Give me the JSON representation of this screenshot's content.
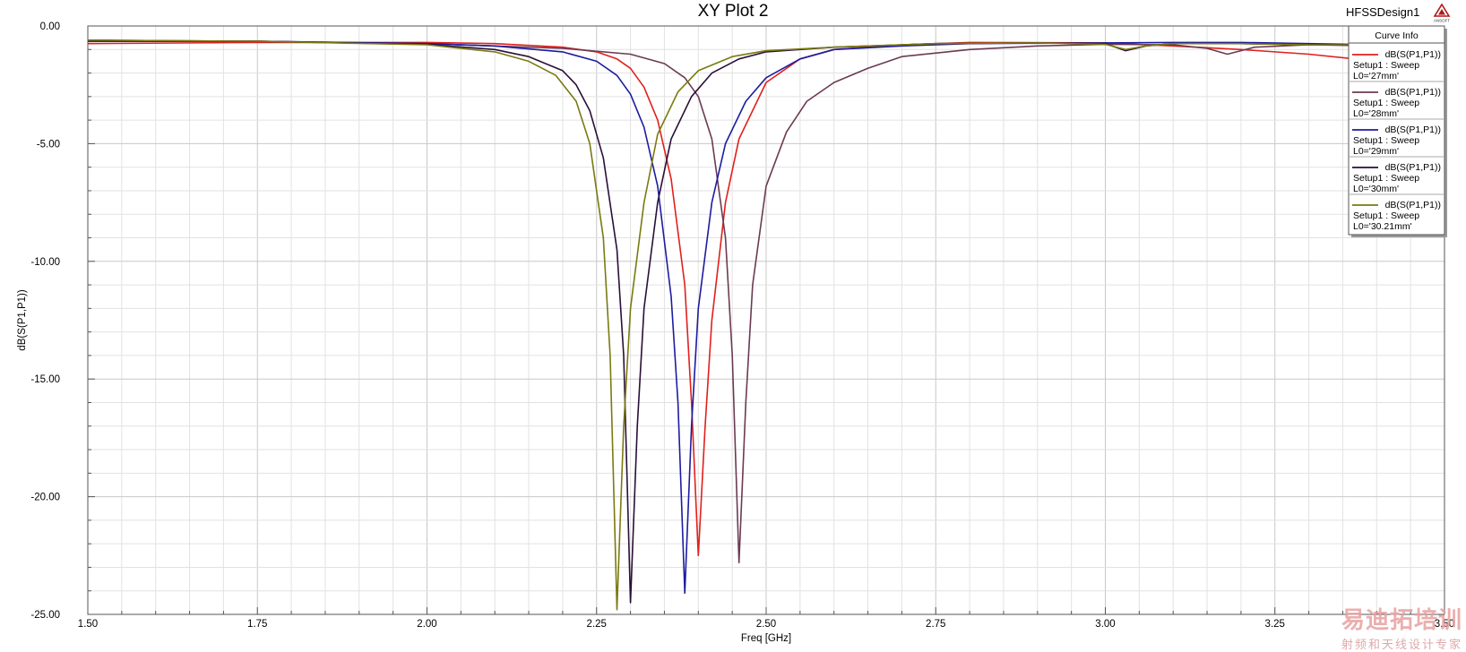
{
  "title": "XY Plot 2",
  "design_name": "HFSSDesign1",
  "logo_text": "ANSOFT",
  "watermark": {
    "line1": "易迪拓培训",
    "line2": "射频和天线设计专家"
  },
  "legend": {
    "header": "Curve Info"
  },
  "chart_data": {
    "type": "line",
    "title": "XY Plot 2",
    "xlabel": "Freq [GHz]",
    "ylabel": "dB(S(P1,P1))",
    "xlim": [
      1.5,
      3.5
    ],
    "ylim": [
      -25,
      0
    ],
    "x_ticks": [
      "1.50",
      "1.75",
      "2.00",
      "2.25",
      "2.50",
      "2.75",
      "3.00",
      "3.25",
      "3.50"
    ],
    "y_ticks": [
      "0.00",
      "-5.00",
      "-10.00",
      "-15.00",
      "-20.00",
      "-25.00"
    ],
    "grid": true,
    "legend_position": "top-right",
    "series": [
      {
        "name": "dB(S(P1,P1))",
        "setup": "Setup1 : Sweep",
        "param": "L0='27mm'",
        "color": "#e0201c",
        "points": [
          [
            1.5,
            -0.75
          ],
          [
            1.75,
            -0.7
          ],
          [
            2.0,
            -0.7
          ],
          [
            2.1,
            -0.75
          ],
          [
            2.2,
            -0.9
          ],
          [
            2.25,
            -1.1
          ],
          [
            2.28,
            -1.4
          ],
          [
            2.3,
            -1.8
          ],
          [
            2.32,
            -2.6
          ],
          [
            2.34,
            -4.0
          ],
          [
            2.36,
            -6.5
          ],
          [
            2.38,
            -11.0
          ],
          [
            2.39,
            -16.0
          ],
          [
            2.4,
            -22.5
          ],
          [
            2.41,
            -17.0
          ],
          [
            2.42,
            -12.5
          ],
          [
            2.44,
            -7.5
          ],
          [
            2.46,
            -4.8
          ],
          [
            2.5,
            -2.4
          ],
          [
            2.55,
            -1.4
          ],
          [
            2.6,
            -1.0
          ],
          [
            2.7,
            -0.8
          ],
          [
            2.8,
            -0.7
          ],
          [
            3.0,
            -0.72
          ],
          [
            3.1,
            -0.85
          ],
          [
            3.2,
            -1.0
          ],
          [
            3.3,
            -1.2
          ],
          [
            3.4,
            -1.5
          ],
          [
            3.45,
            -1.7
          ]
        ]
      },
      {
        "name": "dB(S(P1,P1))",
        "setup": "Setup1 : Sweep",
        "param": "L0='28mm'",
        "color": "#6b3a52",
        "points": [
          [
            1.5,
            -0.65
          ],
          [
            1.75,
            -0.65
          ],
          [
            2.0,
            -0.75
          ],
          [
            2.2,
            -0.95
          ],
          [
            2.3,
            -1.2
          ],
          [
            2.35,
            -1.6
          ],
          [
            2.38,
            -2.2
          ],
          [
            2.4,
            -3.0
          ],
          [
            2.42,
            -4.8
          ],
          [
            2.44,
            -9.0
          ],
          [
            2.45,
            -14.0
          ],
          [
            2.46,
            -22.8
          ],
          [
            2.47,
            -16.0
          ],
          [
            2.48,
            -11.0
          ],
          [
            2.5,
            -6.8
          ],
          [
            2.53,
            -4.5
          ],
          [
            2.56,
            -3.2
          ],
          [
            2.6,
            -2.4
          ],
          [
            2.65,
            -1.8
          ],
          [
            2.7,
            -1.3
          ],
          [
            2.8,
            -1.0
          ],
          [
            2.9,
            -0.85
          ],
          [
            3.0,
            -0.78
          ],
          [
            3.1,
            -0.8
          ],
          [
            3.15,
            -0.95
          ],
          [
            3.18,
            -1.2
          ],
          [
            3.22,
            -0.9
          ],
          [
            3.3,
            -0.8
          ],
          [
            3.4,
            -0.85
          ],
          [
            3.45,
            -0.85
          ]
        ]
      },
      {
        "name": "dB(S(P1,P1))",
        "setup": "Setup1 : Sweep",
        "param": "L0='29mm'",
        "color": "#1c1ca0",
        "points": [
          [
            1.5,
            -0.65
          ],
          [
            1.75,
            -0.65
          ],
          [
            2.0,
            -0.75
          ],
          [
            2.1,
            -0.85
          ],
          [
            2.2,
            -1.1
          ],
          [
            2.25,
            -1.5
          ],
          [
            2.28,
            -2.1
          ],
          [
            2.3,
            -2.9
          ],
          [
            2.32,
            -4.3
          ],
          [
            2.34,
            -6.8
          ],
          [
            2.36,
            -11.5
          ],
          [
            2.37,
            -16.0
          ],
          [
            2.38,
            -24.1
          ],
          [
            2.39,
            -17.0
          ],
          [
            2.4,
            -12.0
          ],
          [
            2.42,
            -7.5
          ],
          [
            2.44,
            -5.0
          ],
          [
            2.47,
            -3.2
          ],
          [
            2.5,
            -2.2
          ],
          [
            2.55,
            -1.4
          ],
          [
            2.6,
            -1.0
          ],
          [
            2.7,
            -0.85
          ],
          [
            2.8,
            -0.75
          ],
          [
            3.0,
            -0.72
          ],
          [
            3.1,
            -0.7
          ],
          [
            3.2,
            -0.7
          ],
          [
            3.3,
            -0.75
          ],
          [
            3.4,
            -0.8
          ],
          [
            3.45,
            -0.8
          ]
        ]
      },
      {
        "name": "dB(S(P1,P1))",
        "setup": "Setup1 : Sweep",
        "param": "L0='30mm'",
        "color": "#2a0f38",
        "points": [
          [
            1.5,
            -0.6
          ],
          [
            1.75,
            -0.65
          ],
          [
            2.0,
            -0.78
          ],
          [
            2.1,
            -1.0
          ],
          [
            2.15,
            -1.3
          ],
          [
            2.2,
            -1.9
          ],
          [
            2.22,
            -2.5
          ],
          [
            2.24,
            -3.6
          ],
          [
            2.26,
            -5.6
          ],
          [
            2.28,
            -9.5
          ],
          [
            2.29,
            -14.0
          ],
          [
            2.3,
            -24.5
          ],
          [
            2.31,
            -17.0
          ],
          [
            2.32,
            -12.0
          ],
          [
            2.34,
            -7.5
          ],
          [
            2.36,
            -4.8
          ],
          [
            2.39,
            -3.0
          ],
          [
            2.42,
            -2.0
          ],
          [
            2.46,
            -1.4
          ],
          [
            2.5,
            -1.1
          ],
          [
            2.6,
            -0.9
          ],
          [
            2.75,
            -0.75
          ],
          [
            2.9,
            -0.72
          ],
          [
            3.0,
            -0.75
          ],
          [
            3.03,
            -1.05
          ],
          [
            3.06,
            -0.85
          ],
          [
            3.1,
            -0.75
          ],
          [
            3.2,
            -0.75
          ],
          [
            3.3,
            -0.8
          ],
          [
            3.45,
            -0.8
          ]
        ]
      },
      {
        "name": "dB(S(P1,P1))",
        "setup": "Setup1 : Sweep",
        "param": "L0='30.21mm'",
        "color": "#7a7a10",
        "points": [
          [
            1.5,
            -0.6
          ],
          [
            1.75,
            -0.65
          ],
          [
            2.0,
            -0.8
          ],
          [
            2.1,
            -1.1
          ],
          [
            2.15,
            -1.5
          ],
          [
            2.19,
            -2.1
          ],
          [
            2.22,
            -3.2
          ],
          [
            2.24,
            -5.0
          ],
          [
            2.26,
            -9.0
          ],
          [
            2.27,
            -14.0
          ],
          [
            2.28,
            -24.8
          ],
          [
            2.29,
            -17.0
          ],
          [
            2.3,
            -12.0
          ],
          [
            2.32,
            -7.5
          ],
          [
            2.34,
            -4.6
          ],
          [
            2.37,
            -2.8
          ],
          [
            2.4,
            -1.9
          ],
          [
            2.45,
            -1.3
          ],
          [
            2.5,
            -1.05
          ],
          [
            2.6,
            -0.9
          ],
          [
            2.75,
            -0.75
          ],
          [
            2.9,
            -0.72
          ],
          [
            3.0,
            -0.78
          ],
          [
            3.03,
            -1.0
          ],
          [
            3.06,
            -0.85
          ],
          [
            3.1,
            -0.75
          ],
          [
            3.2,
            -0.75
          ],
          [
            3.3,
            -0.8
          ],
          [
            3.45,
            -0.8
          ]
        ]
      }
    ]
  }
}
